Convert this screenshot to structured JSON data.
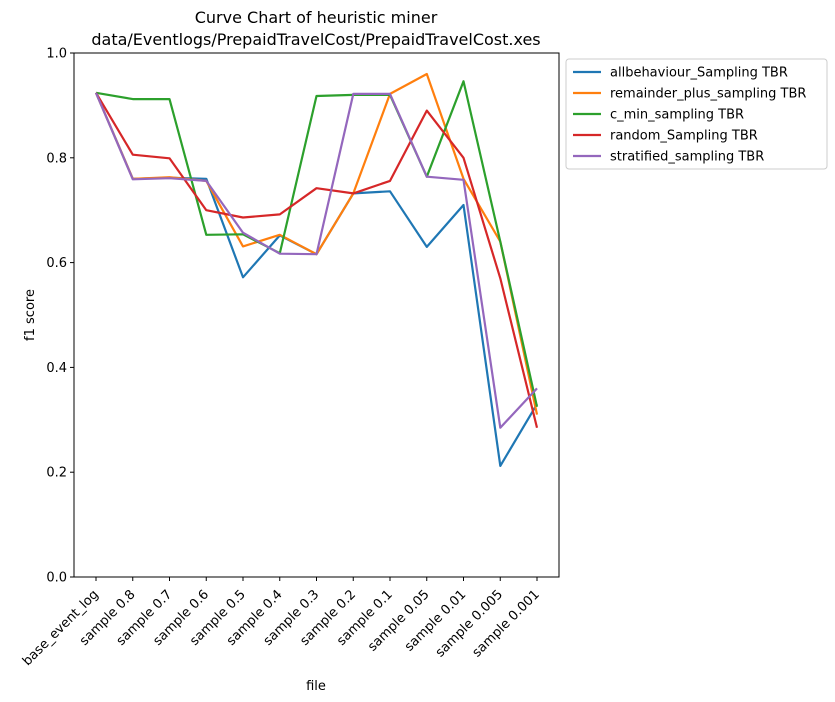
{
  "chart_data": {
    "type": "line",
    "title": "Curve Chart of heuristic miner",
    "subtitle": "data/Eventlogs/PrepaidTravelCost/PrepaidTravelCost.xes",
    "xlabel": "file",
    "ylabel": "f1 score",
    "ylim": [
      0,
      1
    ],
    "yticks": [
      "0.0",
      "0.2",
      "0.4",
      "0.6",
      "0.8",
      "1.0"
    ],
    "grid": false,
    "legend_position": "outside-right",
    "categories": [
      "base_event_log",
      "sample 0.8",
      "sample 0.7",
      "sample 0.6",
      "sample 0.5",
      "sample 0.4",
      "sample 0.3",
      "sample 0.2",
      "sample 0.1",
      "sample 0.05",
      "sample 0.01",
      "sample 0.005",
      "sample 0.001"
    ],
    "series": [
      {
        "name": "allbehaviour_Sampling TBR",
        "color": "#1f77b4",
        "values": [
          0.924,
          0.76,
          0.762,
          0.76,
          0.572,
          0.652,
          0.616,
          0.732,
          0.736,
          0.63,
          0.71,
          0.212,
          0.33
        ]
      },
      {
        "name": "remainder_plus_sampling TBR",
        "color": "#ff7f0e",
        "values": [
          0.924,
          0.76,
          0.763,
          0.756,
          0.631,
          0.653,
          0.616,
          0.732,
          0.922,
          0.96,
          0.76,
          0.64,
          0.31
        ]
      },
      {
        "name": "c_min_sampling TBR",
        "color": "#2ca02c",
        "values": [
          0.924,
          0.912,
          0.912,
          0.653,
          0.654,
          0.618,
          0.918,
          0.92,
          0.92,
          0.764,
          0.946,
          0.64,
          0.325
        ]
      },
      {
        "name": "random_Sampling TBR",
        "color": "#d62728",
        "values": [
          0.924,
          0.806,
          0.799,
          0.7,
          0.686,
          0.692,
          0.742,
          0.732,
          0.756,
          0.89,
          0.8,
          0.57,
          0.285
        ]
      },
      {
        "name": "stratified_sampling TBR",
        "color": "#9467bd",
        "values": [
          0.924,
          0.759,
          0.761,
          0.756,
          0.657,
          0.617,
          0.616,
          0.922,
          0.922,
          0.764,
          0.758,
          0.285,
          0.36
        ]
      }
    ]
  }
}
